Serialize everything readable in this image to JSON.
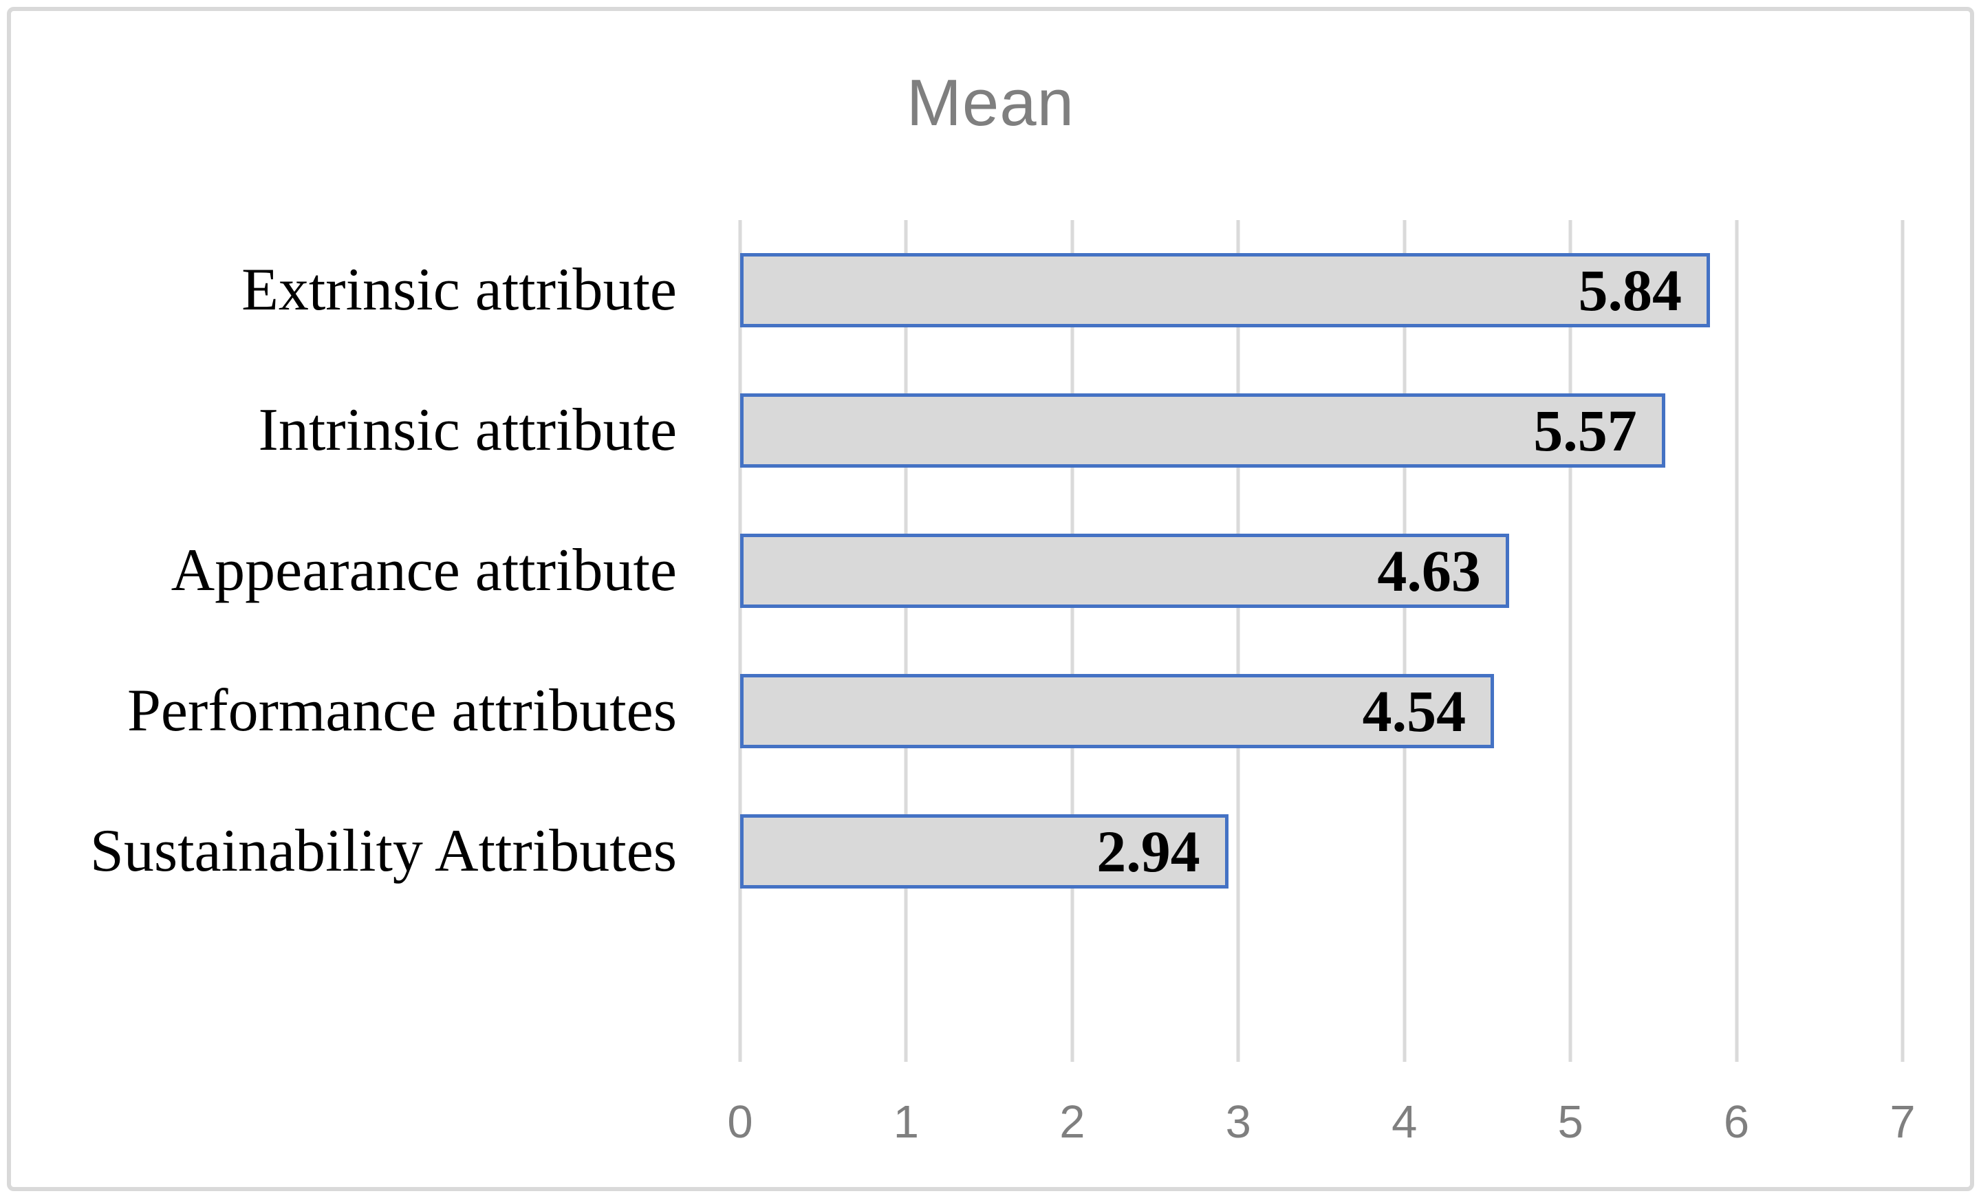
{
  "chart_data": {
    "type": "bar",
    "orientation": "horizontal",
    "title": "Mean",
    "categories": [
      "Extrinsic attribute",
      "Intrinsic attribute",
      "Appearance attribute",
      "Performance attributes",
      "Sustainability Attributes"
    ],
    "values": [
      5.84,
      5.57,
      4.63,
      4.54,
      2.94
    ],
    "data_labels": [
      "5.84",
      "5.57",
      "4.63",
      "4.54",
      "2.94"
    ],
    "x_ticks": [
      "0",
      "1",
      "2",
      "3",
      "4",
      "5",
      "6",
      "7"
    ],
    "xlim": [
      0,
      7
    ],
    "ylabel": "",
    "xlabel": "",
    "legend": "none",
    "grid": "vertical-major-only",
    "colors": {
      "bar_fill": "#d9d9d9",
      "bar_border": "#4472c4",
      "gridline": "#dadada",
      "frame_border": "#d9d9d9",
      "title_text": "#7f7f7f",
      "tick_text": "#7f7f7f",
      "label_text": "#000000",
      "background": "#ffffff"
    }
  }
}
